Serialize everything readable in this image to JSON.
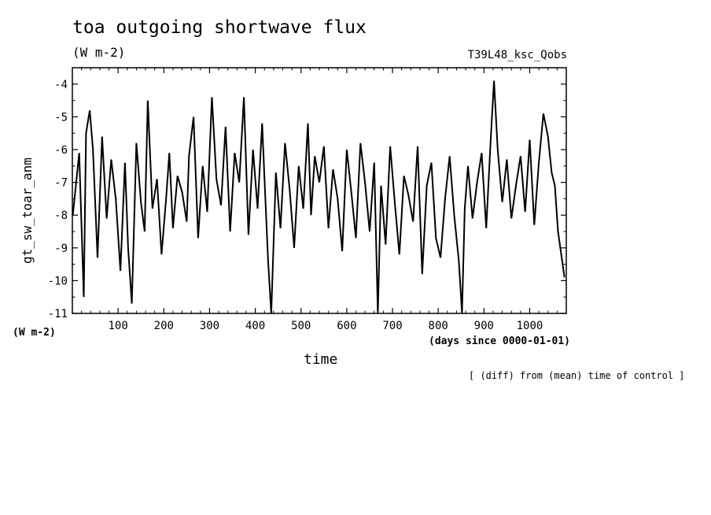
{
  "header": {
    "title": "toa outgoing shortwave flux",
    "units": "(W m-2)",
    "run_name": "T39L48_ksc_Qobs",
    "note": "[ (diff) from (mean) time of control ]"
  },
  "chart_data": {
    "type": "line",
    "title": "toa outgoing shortwave flux",
    "subtitle": "(W m-2)",
    "xlabel": "time",
    "xunits": "(days since 0000-01-01)",
    "ylabel": "gt_sw_toar_anm",
    "yunits": "(W m-2)",
    "xlim": [
      0,
      1080
    ],
    "ylim": [
      -11,
      -3.5
    ],
    "xticks": [
      100,
      200,
      300,
      400,
      500,
      600,
      700,
      800,
      900,
      1000
    ],
    "yticks": [
      -11,
      -10,
      -9,
      -8,
      -7,
      -6,
      -5,
      -4
    ],
    "grid": false,
    "series": [
      {
        "color": "#000000",
        "x": [
          1,
          15,
          25,
          30,
          38,
          45,
          55,
          65,
          75,
          85,
          95,
          105,
          115,
          122,
          130,
          140,
          150,
          158,
          165,
          175,
          185,
          195,
          205,
          212,
          220,
          230,
          240,
          250,
          255,
          265,
          275,
          285,
          295,
          305,
          315,
          325,
          335,
          345,
          355,
          365,
          375,
          385,
          395,
          405,
          415,
          422,
          428,
          435,
          445,
          455,
          465,
          475,
          485,
          495,
          505,
          515,
          522,
          530,
          540,
          550,
          560,
          570,
          580,
          590,
          600,
          610,
          620,
          630,
          640,
          650,
          660,
          668,
          675,
          685,
          695,
          705,
          715,
          725,
          735,
          745,
          755,
          765,
          775,
          785,
          795,
          805,
          815,
          825,
          835,
          845,
          852,
          858,
          865,
          875,
          885,
          895,
          905,
          915,
          922,
          930,
          940,
          950,
          960,
          970,
          980,
          990,
          1000,
          1010,
          1020,
          1030,
          1040,
          1048,
          1055,
          1062,
          1070,
          1076
        ],
        "values": [
          -8.0,
          -6.1,
          -10.5,
          -5.5,
          -4.8,
          -6.0,
          -9.3,
          -5.6,
          -8.1,
          -6.3,
          -7.5,
          -9.7,
          -6.4,
          -9.0,
          -10.7,
          -5.8,
          -7.6,
          -8.5,
          -4.5,
          -7.8,
          -6.9,
          -9.2,
          -7.5,
          -6.1,
          -8.4,
          -6.8,
          -7.3,
          -8.2,
          -6.2,
          -5.0,
          -8.7,
          -6.5,
          -7.9,
          -4.4,
          -6.9,
          -7.7,
          -5.3,
          -8.5,
          -6.1,
          -7.0,
          -4.4,
          -8.6,
          -6.0,
          -7.8,
          -5.2,
          -7.5,
          -9.4,
          -11.0,
          -6.7,
          -8.4,
          -5.8,
          -7.2,
          -9.0,
          -6.5,
          -7.8,
          -5.2,
          -8.0,
          -6.2,
          -7.0,
          -5.9,
          -8.4,
          -6.6,
          -7.5,
          -9.1,
          -6.0,
          -7.3,
          -8.7,
          -5.8,
          -7.0,
          -8.5,
          -6.4,
          -11.0,
          -7.1,
          -8.9,
          -5.9,
          -7.6,
          -9.2,
          -6.8,
          -7.4,
          -8.2,
          -5.9,
          -9.8,
          -7.1,
          -6.4,
          -8.7,
          -9.3,
          -7.5,
          -6.2,
          -8.0,
          -9.4,
          -11.0,
          -7.8,
          -6.5,
          -8.1,
          -7.0,
          -6.1,
          -8.4,
          -5.6,
          -3.9,
          -6.0,
          -7.6,
          -6.3,
          -8.1,
          -7.1,
          -6.2,
          -7.9,
          -5.7,
          -8.3,
          -6.4,
          -4.9,
          -5.6,
          -6.7,
          -7.1,
          -8.5,
          -9.3,
          -9.9
        ]
      }
    ]
  }
}
